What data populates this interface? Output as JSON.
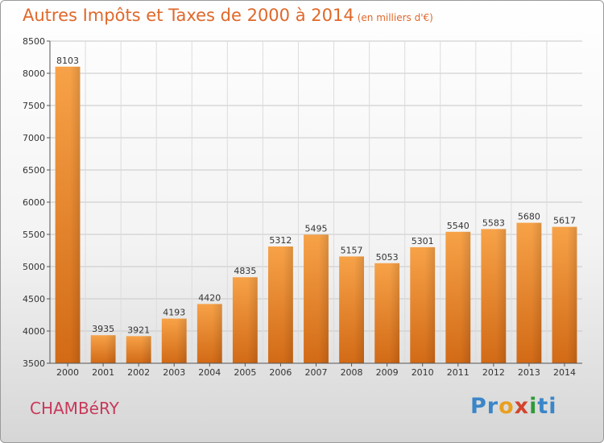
{
  "header": {
    "title": "Autres Impôts et Taxes de 2000 à 2014",
    "unit": "(en milliers d'€)"
  },
  "footer": {
    "city": "CHAMBéRY",
    "logo": "Proxiti"
  },
  "colors": {
    "bar": "#f0922e",
    "title": "#e0682a",
    "city": "#c8385a"
  },
  "chart_data": {
    "type": "bar",
    "title": "Autres Impôts et Taxes de 2000 à 2014",
    "subtitle": "(en milliers d'€)",
    "categories": [
      "2000",
      "2001",
      "2002",
      "2003",
      "2004",
      "2005",
      "2006",
      "2007",
      "2008",
      "2009",
      "2010",
      "2011",
      "2012",
      "2013",
      "2014"
    ],
    "values": [
      8103,
      3935,
      3921,
      4193,
      4420,
      4835,
      5312,
      5495,
      5157,
      5053,
      5301,
      5540,
      5583,
      5680,
      5617
    ],
    "ylim": [
      3500,
      8500
    ],
    "yticks": [
      3500,
      4000,
      4500,
      5000,
      5500,
      6000,
      6500,
      7000,
      7500,
      8000,
      8500
    ],
    "grid": true,
    "xlabel": "",
    "ylabel": ""
  }
}
